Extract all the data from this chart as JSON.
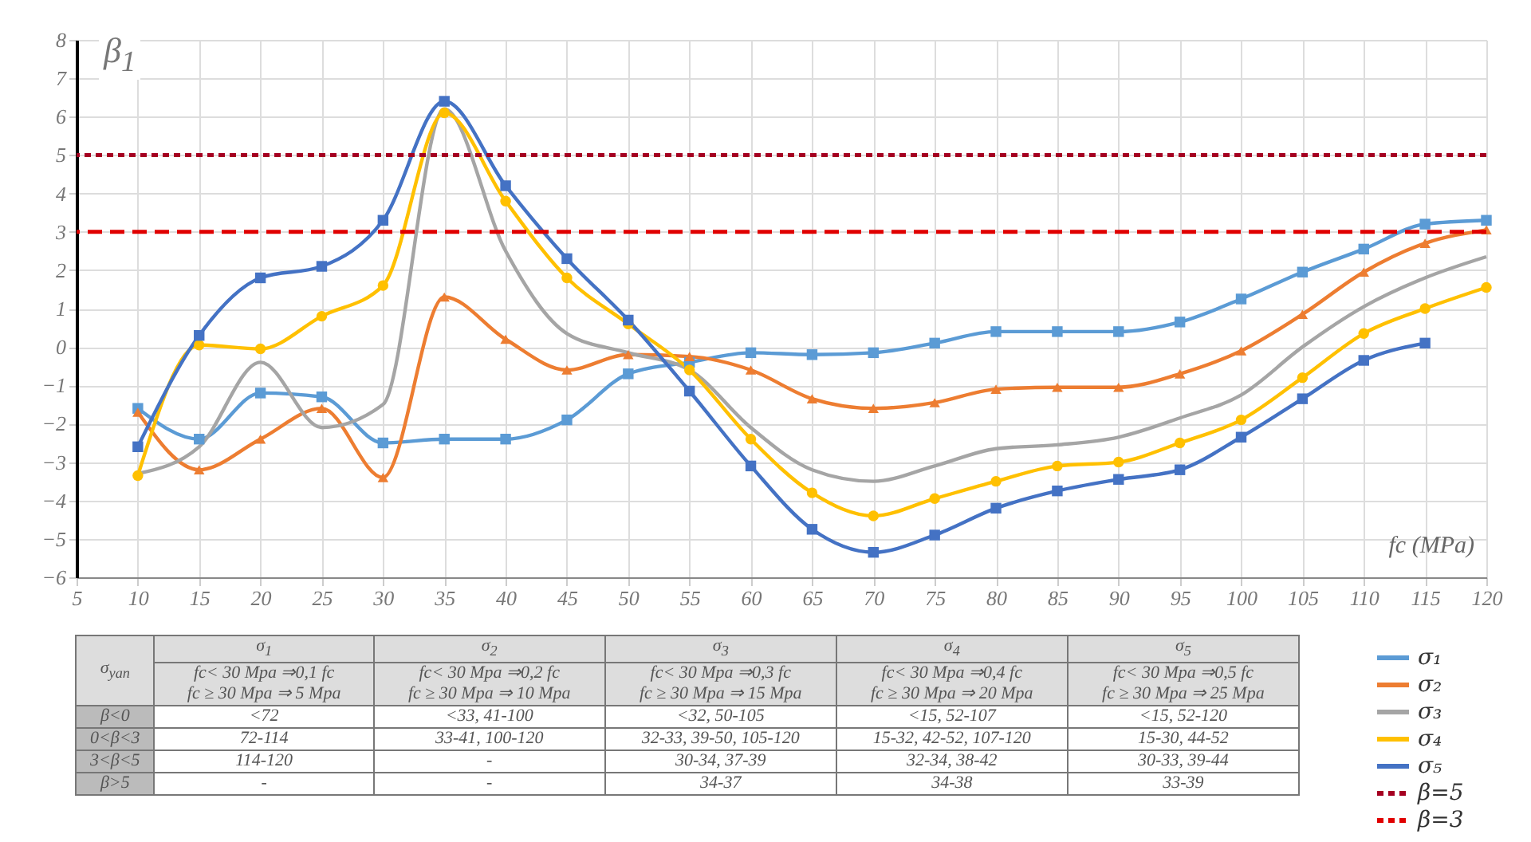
{
  "chart_data": {
    "type": "line",
    "ylabel": "β$_{1}$",
    "xlabel": "fc (MPa)",
    "x": [
      10,
      15,
      20,
      25,
      30,
      35,
      40,
      45,
      50,
      55,
      60,
      65,
      70,
      75,
      80,
      85,
      90,
      95,
      100,
      105,
      110,
      115,
      120
    ],
    "series": [
      {
        "name": "σ₁",
        "color": "#5b9bd5",
        "marker": "square",
        "values": [
          -1.6,
          -2.4,
          -1.2,
          -1.3,
          -2.5,
          -2.4,
          -2.4,
          -1.9,
          -0.7,
          -0.4,
          -0.15,
          -0.2,
          -0.15,
          0.1,
          0.4,
          0.4,
          0.4,
          0.65,
          1.25,
          1.95,
          2.55,
          3.2,
          3.3
        ]
      },
      {
        "name": "σ₂",
        "color": "#ed7d31",
        "marker": "triangle",
        "values": [
          -1.7,
          -3.2,
          -2.4,
          -1.6,
          -3.4,
          1.3,
          0.2,
          -0.6,
          -0.2,
          -0.25,
          -0.6,
          -1.35,
          -1.6,
          -1.45,
          -1.1,
          -1.05,
          -1.05,
          -0.7,
          -0.1,
          0.85,
          1.95,
          2.7,
          3.05
        ]
      },
      {
        "name": "σ₃",
        "color": "#a5a5a5",
        "marker": "none",
        "values": [
          -3.3,
          -2.6,
          -0.4,
          -2.1,
          -1.5,
          6.2,
          2.5,
          0.35,
          -0.15,
          -0.6,
          -2.1,
          -3.2,
          -3.5,
          -3.1,
          -2.65,
          -2.55,
          -2.35,
          -1.85,
          -1.25,
          0,
          1.05,
          1.8,
          2.35
        ]
      },
      {
        "name": "σ₄",
        "color": "#ffc000",
        "marker": "circle",
        "values": [
          -3.35,
          0.05,
          -0.05,
          0.8,
          1.6,
          6.1,
          3.8,
          1.8,
          0.6,
          -0.6,
          -2.4,
          -3.8,
          -4.4,
          -3.95,
          -3.5,
          -3.1,
          -3.0,
          -2.5,
          -1.9,
          -0.8,
          0.35,
          1.0,
          1.55
        ]
      },
      {
        "name": "σ₅",
        "color": "#4472c4",
        "marker": "square",
        "values": [
          -2.6,
          0.3,
          1.8,
          2.1,
          3.3,
          6.4,
          4.2,
          2.3,
          0.7,
          -1.15,
          -3.1,
          -4.75,
          -5.35,
          -4.9,
          -4.2,
          -3.75,
          -3.45,
          -3.2,
          -2.35,
          -1.35,
          -0.35,
          0.1,
          null
        ]
      }
    ],
    "ref_lines": [
      {
        "axis": "y",
        "value": 5,
        "label": "β=5",
        "color": "#a50021",
        "line_style": "dotted"
      },
      {
        "axis": "y",
        "value": 3,
        "label": "β=3",
        "color": "#e00000",
        "line_style": "dashed"
      }
    ],
    "xlim": [
      5,
      120
    ],
    "xticks": [
      5,
      10,
      15,
      20,
      25,
      30,
      35,
      40,
      45,
      50,
      55,
      60,
      65,
      70,
      75,
      80,
      85,
      90,
      95,
      100,
      105,
      110,
      115,
      120
    ],
    "ylim": [
      -6,
      8
    ],
    "yticks": [
      -6,
      -5,
      -4,
      -3,
      -2,
      -1,
      0,
      1,
      2,
      3,
      4,
      5,
      6,
      7,
      8
    ],
    "grid": true,
    "legend": "bottom right",
    "annotations": [
      "σ$_{yan}$",
      "σ$_{1}$",
      "σ$_{2}$",
      "σ$_{3}$",
      "σ$_{4}$",
      "σ$_{5}$",
      "fc< 30 Mpa ⇒0,1 fc",
      "fc ≥ 30 Mpa ⇒ 5 Mpa",
      "fc< 30 Mpa ⇒0,2 fc",
      "fc ≥ 30 Mpa ⇒ 10 Mpa",
      "fc< 30 Mpa ⇒0,3 fc",
      "fc ≥ 30 Mpa ⇒ 15 Mpa",
      "fc< 30 Mpa ⇒0,4 fc",
      "fc ≥ 30 Mpa ⇒ 20 Mpa",
      "fc< 30 Mpa ⇒0,5 fc",
      "fc ≥ 30 Mpa ⇒ 25 Mpa",
      "β<0",
      "<72",
      "<33, 41-100",
      "<32, 50-105",
      "<15, 52-107",
      "<15, 52-120",
      "0<β<3",
      "72-114",
      "33-41, 100-120",
      "32-33, 39-50, 105-120",
      "15-32, 42-52, 107-120",
      "15-30, 44-52",
      "3<β<5",
      "114-120",
      "-",
      "30-34, 37-39",
      "32-34, 38-42",
      "30-33, 39-44",
      "β>5",
      "-",
      "-",
      "34-37",
      "34-38",
      "33-39"
    ]
  }
}
